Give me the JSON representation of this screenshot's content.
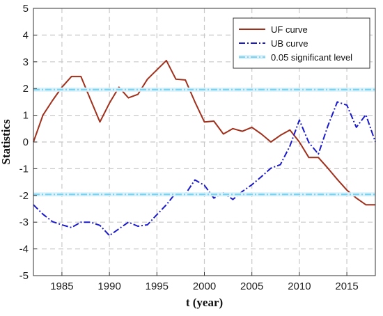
{
  "chart_data": {
    "type": "line",
    "xlabel": "t (year)",
    "ylabel": "Statistics",
    "xlim": [
      1982,
      2018
    ],
    "ylim": [
      -5,
      5
    ],
    "xticks": [
      1985,
      1990,
      1995,
      2000,
      2005,
      2010,
      2015
    ],
    "yticks": [
      -5,
      -4,
      -3,
      -2,
      -1,
      0,
      1,
      2,
      3,
      4,
      5
    ],
    "grid": true,
    "legend_position": "top-right",
    "series": [
      {
        "name": "UF curve",
        "color": "#a0301c",
        "style": "solid",
        "x": [
          1982,
          1983,
          1984,
          1985,
          1986,
          1987,
          1988,
          1989,
          1990,
          1991,
          1992,
          1993,
          1994,
          1995,
          1996,
          1997,
          1998,
          1999,
          2000,
          2001,
          2002,
          2003,
          2004,
          2005,
          2006,
          2007,
          2008,
          2009,
          2010,
          2011,
          2012,
          2013,
          2014,
          2015,
          2016,
          2017,
          2018
        ],
        "y": [
          0,
          1,
          1.55,
          2.05,
          2.45,
          2.45,
          1.6,
          0.75,
          1.45,
          2.05,
          1.65,
          1.78,
          2.35,
          2.7,
          3.05,
          2.35,
          2.32,
          1.5,
          0.75,
          0.78,
          0.3,
          0.5,
          0.4,
          0.55,
          0.3,
          0,
          0.25,
          0.45,
          0,
          -0.58,
          -0.58,
          -0.98,
          -1.4,
          -1.8,
          -2.1,
          -2.35,
          -2.35
        ]
      },
      {
        "name": "UB curve",
        "color": "#1a1acc",
        "style": "dashdot",
        "x": [
          1982,
          1983,
          1984,
          1985,
          1986,
          1987,
          1988,
          1989,
          1990,
          1991,
          1992,
          1993,
          1994,
          1995,
          1996,
          1997,
          1998,
          1999,
          2000,
          2001,
          2002,
          2003,
          2004,
          2005,
          2006,
          2007,
          2008,
          2009,
          2010,
          2011,
          2012,
          2013,
          2014,
          2015,
          2016,
          2017,
          2018
        ],
        "y": [
          -2.35,
          -2.7,
          -2.98,
          -3.1,
          -3.2,
          -3,
          -3,
          -3.12,
          -3.5,
          -3.25,
          -3,
          -3.15,
          -3.1,
          -2.72,
          -2.35,
          -1.9,
          -1.95,
          -1.42,
          -1.62,
          -2.1,
          -1.9,
          -2.15,
          -1.85,
          -1.6,
          -1.3,
          -0.98,
          -0.85,
          -0.15,
          0.82,
          -0.02,
          -0.45,
          0.6,
          1.5,
          1.38,
          0.55,
          1.02,
          0
        ]
      },
      {
        "name": "0.05 significant level",
        "color": "#7ad2f0",
        "style": "dashdot",
        "x": [
          1982,
          2018
        ],
        "y": [
          1.96,
          1.96
        ]
      },
      {
        "name": "",
        "color": "#7ad2f0",
        "style": "dashdot",
        "x": [
          1982,
          2018
        ],
        "y": [
          -1.96,
          -1.96
        ]
      }
    ],
    "legend": [
      "UF curve",
      "UB curve",
      "0.05 significant level"
    ]
  }
}
